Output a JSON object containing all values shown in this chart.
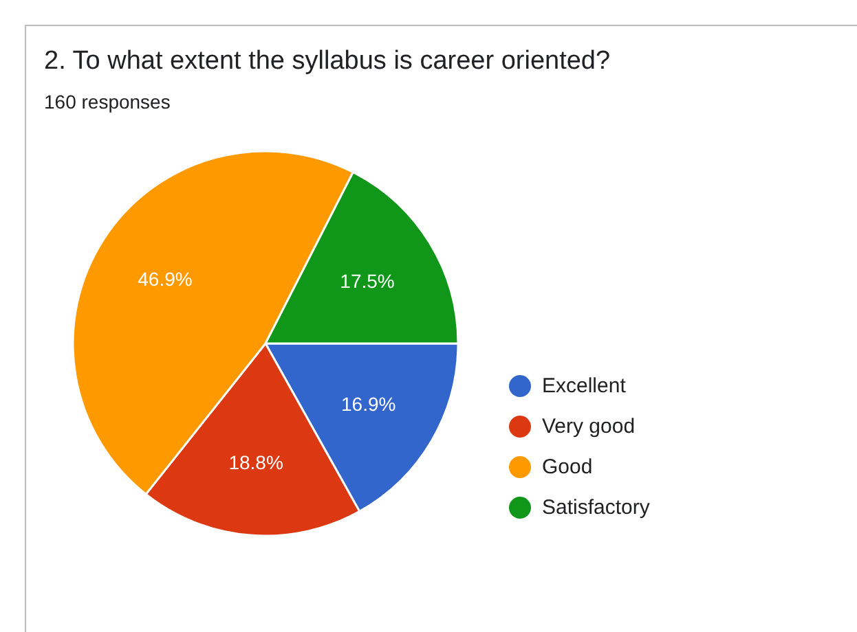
{
  "chart_data": {
    "type": "pie",
    "title": "2. To what extent the syllabus is career oriented?",
    "subtitle": "160 responses",
    "categories": [
      "Excellent",
      "Very good",
      "Good",
      "Satisfactory"
    ],
    "values": [
      16.9,
      18.8,
      46.9,
      17.5
    ],
    "colors": [
      "#3366cc",
      "#dc3912",
      "#ff9900",
      "#109618"
    ],
    "value_labels": [
      "16.9%",
      "18.8%",
      "46.9%",
      "17.5%"
    ],
    "legend": "right"
  }
}
